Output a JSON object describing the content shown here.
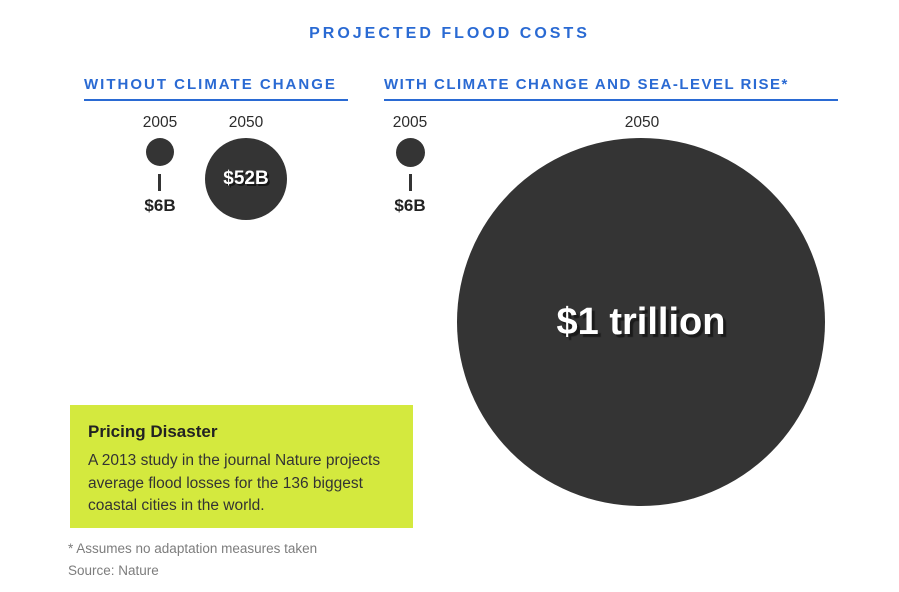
{
  "colors": {
    "accent_blue": "#2a6ad3",
    "bubble_dark": "#343434",
    "callout_green": "#d4e93e",
    "bubble_label_white": "#ffffff",
    "footnote_gray": "#7d7d7d",
    "text_dark": "#222222"
  },
  "chart_data": {
    "type": "bubble",
    "title": "PROJECTED FLOOD COSTS",
    "sizing": "circle area proportional to value in billions of USD",
    "legend_position": "none",
    "groups": [
      {
        "label": "WITHOUT CLIMATE CHANGE",
        "points": [
          {
            "year": "2005",
            "value_billions_usd": 6,
            "label": "$6B",
            "label_position": "below"
          },
          {
            "year": "2050",
            "value_billions_usd": 52,
            "label": "$52B",
            "label_position": "inside"
          }
        ]
      },
      {
        "label": "WITH CLIMATE CHANGE AND SEA-LEVEL RISE*",
        "points": [
          {
            "year": "2005",
            "value_billions_usd": 6,
            "label": "$6B",
            "label_position": "below"
          },
          {
            "year": "2050",
            "value_billions_usd": 1000,
            "label": "$1 trillion",
            "label_position": "inside"
          }
        ]
      }
    ],
    "footnote": "* Assumes no adaptation measures taken",
    "source": "Source: Nature"
  },
  "callout": {
    "title": "Pricing Disaster",
    "body_lines": [
      "A 2013 study in the journal Nature projects",
      "average flood losses for the 136 biggest",
      "coastal cities in the world."
    ]
  }
}
